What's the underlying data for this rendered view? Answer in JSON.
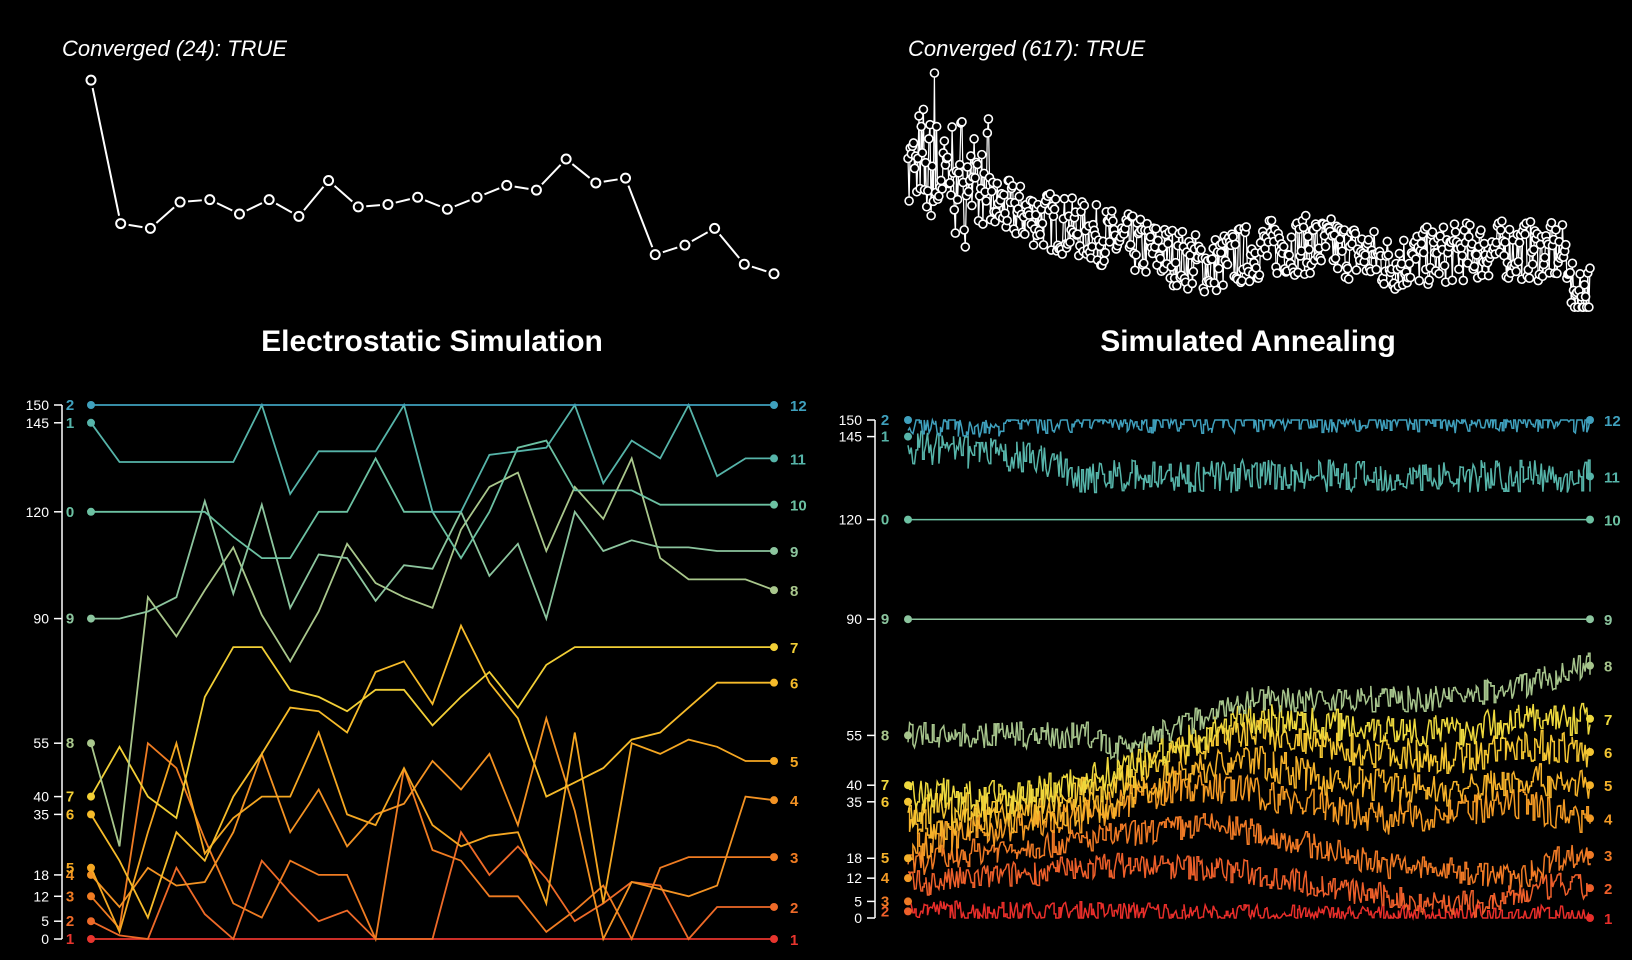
{
  "chart_data": [
    {
      "type": "line",
      "panel": "left",
      "title": "Electrostatic Simulation",
      "convergence_label": "Converged (24): TRUE",
      "energy_trace": [
        0.97,
        0.37,
        0.35,
        0.46,
        0.47,
        0.41,
        0.47,
        0.4,
        0.55,
        0.44,
        0.45,
        0.48,
        0.43,
        0.48,
        0.53,
        0.51,
        0.64,
        0.54,
        0.56,
        0.24,
        0.28,
        0.35,
        0.2,
        0.16
      ],
      "yticks": [
        0,
        5,
        12,
        18,
        35,
        40,
        55,
        90,
        120,
        145,
        150
      ],
      "ylim": [
        0,
        150
      ],
      "start_labels": [
        "1",
        "2",
        "3",
        "4",
        "5",
        "6",
        "7",
        "8",
        "9",
        "0",
        "1",
        "2"
      ],
      "end_labels": [
        "1",
        "2",
        "3",
        "4",
        "5",
        "6",
        "7",
        "8",
        "9",
        "10",
        "11",
        "12"
      ],
      "series": [
        {
          "start": 0,
          "end": 0,
          "color": "#e8352e",
          "values": [
            0,
            0,
            0,
            0,
            0,
            0,
            0,
            0,
            0,
            0,
            0,
            0,
            0,
            0,
            0,
            0,
            0,
            0,
            0,
            0,
            0,
            0,
            0,
            0,
            0
          ]
        },
        {
          "start": 5,
          "end": 9,
          "color": "#ee6a28",
          "values": [
            5,
            1,
            0,
            20,
            7,
            0,
            22,
            13,
            5,
            8,
            0,
            0,
            0,
            30,
            18,
            26,
            17,
            5,
            10,
            16,
            15,
            0,
            9,
            9,
            9
          ]
        },
        {
          "start": 12,
          "end": 23,
          "color": "#f07c22",
          "values": [
            12,
            3,
            55,
            48,
            28,
            10,
            6,
            22,
            18,
            18,
            0,
            48,
            25,
            22,
            12,
            12,
            2,
            8,
            15,
            0,
            20,
            23,
            23,
            23,
            23
          ]
        },
        {
          "start": 18,
          "end": 39,
          "color": "#f39223",
          "values": [
            18,
            9,
            20,
            15,
            16,
            30,
            52,
            30,
            42,
            26,
            35,
            38,
            50,
            42,
            52,
            32,
            62,
            36,
            0,
            16,
            14,
            12,
            15,
            40,
            39
          ]
        },
        {
          "start": 20,
          "end": 50,
          "color": "#f5a722",
          "values": [
            20,
            2,
            30,
            55,
            24,
            34,
            40,
            40,
            58,
            35,
            32,
            48,
            32,
            26,
            29,
            30,
            10,
            58,
            10,
            55,
            52,
            56,
            54,
            50,
            50
          ]
        },
        {
          "start": 35,
          "end": 72,
          "color": "#f6bb2a",
          "values": [
            35,
            22,
            6,
            30,
            22,
            40,
            52,
            65,
            64,
            58,
            75,
            78,
            66,
            88,
            72,
            62,
            40,
            44,
            48,
            56,
            58,
            65,
            72,
            72,
            72
          ]
        },
        {
          "start": 40,
          "end": 82,
          "color": "#f2cf36",
          "values": [
            40,
            54,
            40,
            34,
            68,
            82,
            82,
            70,
            68,
            64,
            70,
            70,
            60,
            68,
            75,
            65,
            77,
            82,
            82,
            82,
            82,
            82,
            82,
            82,
            82
          ]
        },
        {
          "start": 55,
          "end": 98,
          "color": "#a9c78c",
          "values": [
            55,
            26,
            96,
            85,
            98,
            110,
            91,
            78,
            92,
            111,
            100,
            96,
            93,
            115,
            127,
            131,
            109,
            127,
            118,
            135,
            107,
            101,
            101,
            101,
            98
          ]
        },
        {
          "start": 90,
          "end": 109,
          "color": "#8cc59e",
          "values": [
            90,
            90,
            92,
            96,
            123,
            97,
            122,
            93,
            108,
            107,
            95,
            105,
            104,
            120,
            102,
            111,
            90,
            120,
            109,
            112,
            110,
            110,
            109,
            109,
            109
          ]
        },
        {
          "start": 120,
          "end": 122,
          "color": "#6cc1a2",
          "values": [
            120,
            120,
            120,
            120,
            120,
            113,
            107,
            107,
            120,
            120,
            135,
            120,
            120,
            107,
            120,
            138,
            140,
            126,
            126,
            126,
            122,
            122,
            122,
            122,
            122
          ]
        },
        {
          "start": 145,
          "end": 135,
          "color": "#56b4a9",
          "values": [
            145,
            134,
            134,
            134,
            134,
            134,
            150,
            125,
            137,
            137,
            137,
            150,
            120,
            120,
            136,
            137,
            138,
            150,
            128,
            140,
            135,
            150,
            130,
            135,
            135
          ]
        },
        {
          "start": 150,
          "end": 150,
          "color": "#3fa0bd",
          "values": [
            150,
            150,
            150,
            150,
            150,
            150,
            150,
            150,
            150,
            150,
            150,
            150,
            150,
            150,
            150,
            150,
            150,
            150,
            150,
            150,
            150,
            150,
            150,
            150,
            150
          ]
        }
      ]
    },
    {
      "type": "line",
      "panel": "right",
      "title": "Simulated Annealing",
      "convergence_label": "Converged (617): TRUE",
      "yticks": [
        0,
        5,
        12,
        18,
        35,
        40,
        55,
        90,
        120,
        145,
        150
      ],
      "ylim": [
        0,
        150
      ],
      "start_labels": [
        "2",
        "3",
        "4",
        "5",
        "6",
        "7",
        "8",
        "9",
        "0",
        "1",
        "2"
      ],
      "end_labels": [
        "1",
        "2",
        "3",
        "4",
        "5",
        "6",
        "7",
        "8",
        "9",
        "10",
        "11",
        "12"
      ],
      "series": [
        {
          "color": "#e82e2a",
          "keys": [
            [
              0,
              3
            ],
            [
              0.12,
              2
            ],
            [
              0.2,
              2
            ],
            [
              0.35,
              2
            ],
            [
              0.45,
              1
            ],
            [
              0.55,
              1
            ],
            [
              0.62,
              1
            ],
            [
              0.72,
              1
            ],
            [
              0.85,
              1
            ],
            [
              0.95,
              1
            ],
            [
              1,
              0
            ]
          ],
          "jitter": 3
        },
        {
          "color": "#ee5f2a",
          "keys": [
            [
              0,
              10
            ],
            [
              0.1,
              12
            ],
            [
              0.2,
              14
            ],
            [
              0.3,
              16
            ],
            [
              0.45,
              15
            ],
            [
              0.55,
              12
            ],
            [
              0.65,
              8
            ],
            [
              0.75,
              5
            ],
            [
              0.85,
              4
            ],
            [
              0.95,
              10
            ],
            [
              1,
              9
            ]
          ],
          "jitter": 4
        },
        {
          "color": "#f07a25",
          "keys": [
            [
              0,
              16
            ],
            [
              0.1,
              20
            ],
            [
              0.2,
              22
            ],
            [
              0.35,
              26
            ],
            [
              0.45,
              28
            ],
            [
              0.55,
              24
            ],
            [
              0.7,
              16
            ],
            [
              0.8,
              14
            ],
            [
              0.9,
              12
            ],
            [
              0.95,
              18
            ],
            [
              1,
              19
            ]
          ],
          "jitter": 4
        },
        {
          "color": "#f39a24",
          "keys": [
            [
              0,
              22
            ],
            [
              0.1,
              26
            ],
            [
              0.25,
              30
            ],
            [
              0.4,
              40
            ],
            [
              0.5,
              38
            ],
            [
              0.6,
              34
            ],
            [
              0.7,
              30
            ],
            [
              0.8,
              32
            ],
            [
              0.9,
              34
            ],
            [
              1,
              30
            ]
          ],
          "jitter": 5
        },
        {
          "color": "#f5b22a",
          "keys": [
            [
              0,
              28
            ],
            [
              0.15,
              30
            ],
            [
              0.3,
              34
            ],
            [
              0.4,
              44
            ],
            [
              0.5,
              48
            ],
            [
              0.6,
              42
            ],
            [
              0.7,
              40
            ],
            [
              0.8,
              38
            ],
            [
              0.9,
              42
            ],
            [
              1,
              40
            ]
          ],
          "jitter": 5
        },
        {
          "color": "#f4c632",
          "keys": [
            [
              0,
              32
            ],
            [
              0.15,
              34
            ],
            [
              0.3,
              40
            ],
            [
              0.4,
              50
            ],
            [
              0.5,
              56
            ],
            [
              0.6,
              52
            ],
            [
              0.7,
              50
            ],
            [
              0.8,
              48
            ],
            [
              0.9,
              52
            ],
            [
              1,
              50
            ]
          ],
          "jitter": 5
        },
        {
          "color": "#eed93e",
          "keys": [
            [
              0,
              38
            ],
            [
              0.15,
              36
            ],
            [
              0.3,
              44
            ],
            [
              0.42,
              54
            ],
            [
              0.5,
              60
            ],
            [
              0.65,
              58
            ],
            [
              0.8,
              56
            ],
            [
              0.9,
              60
            ],
            [
              1,
              60
            ]
          ],
          "jitter": 5
        },
        {
          "color": "#a6c48c",
          "keys": [
            [
              0,
              55
            ],
            [
              0.27,
              55
            ],
            [
              0.3,
              50
            ],
            [
              0.4,
              58
            ],
            [
              0.45,
              62
            ],
            [
              0.5,
              66
            ],
            [
              0.6,
              66
            ],
            [
              0.8,
              66
            ],
            [
              0.9,
              70
            ],
            [
              1,
              76
            ]
          ],
          "jitter": 4
        },
        {
          "color": "#8cc59e",
          "keys": [
            [
              0,
              90
            ],
            [
              1,
              90
            ]
          ],
          "jitter": 0
        },
        {
          "color": "#6cc1a2",
          "keys": [
            [
              0,
              120
            ],
            [
              1,
              120
            ]
          ],
          "jitter": 0
        },
        {
          "color": "#56b4a9",
          "keys": [
            [
              0,
              142
            ],
            [
              0.1,
              140
            ],
            [
              0.2,
              138
            ],
            [
              0.23,
              136
            ],
            [
              0.24,
              133
            ],
            [
              1,
              133
            ]
          ],
          "jitter": 5
        },
        {
          "color": "#3fa0bd",
          "keys": [
            [
              0,
              150
            ],
            [
              0.1,
              148
            ],
            [
              0.2,
              150
            ],
            [
              0.23,
              150
            ],
            [
              1,
              150
            ]
          ],
          "jitter": 4
        }
      ]
    }
  ]
}
